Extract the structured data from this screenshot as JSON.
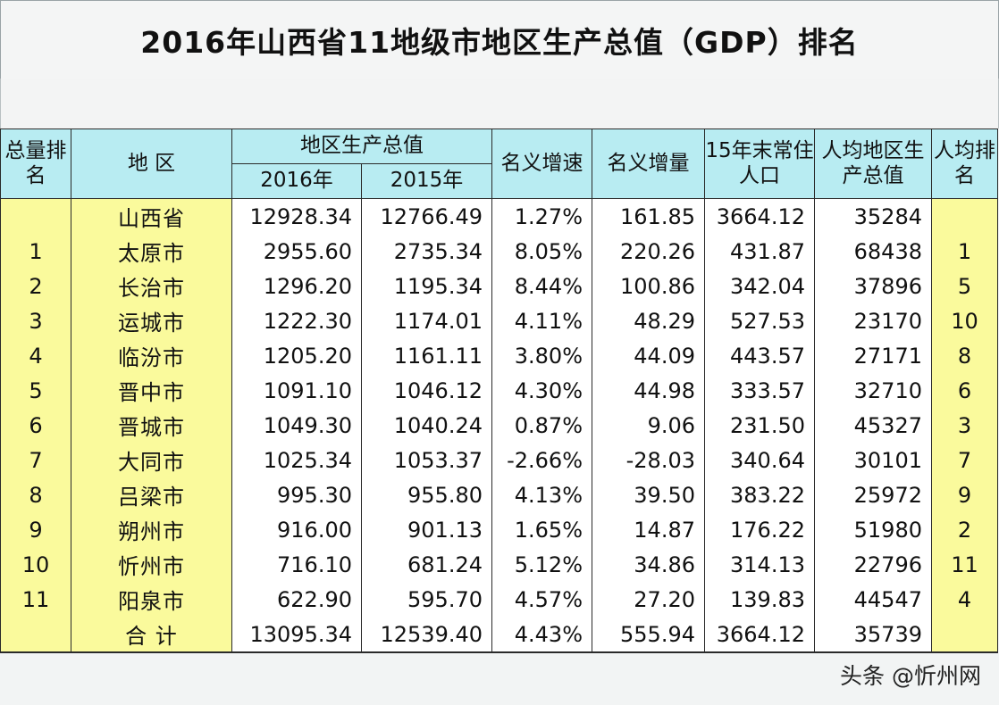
{
  "title": "2016年山西省11地级市地区生产总值（GDP）排名",
  "headers": {
    "rank_total": "总量排名",
    "region": "地 区",
    "gdp": "地区生产总值",
    "y2016": "2016年",
    "y2015": "2015年",
    "growth": "名义增速",
    "increment": "名义增量",
    "population": "15年末常住人口",
    "per_capita": "人均地区生产总值",
    "per_capita_rank": "人均排名"
  },
  "rows": [
    {
      "rank": "",
      "region": "山西省",
      "gdp2016": "12928.34",
      "gdp2015": "12766.49",
      "growth": "1.27%",
      "increment": "161.85",
      "population": "3664.12",
      "per_capita": "35284",
      "pc_rank": ""
    },
    {
      "rank": "1",
      "region": "太原市",
      "gdp2016": "2955.60",
      "gdp2015": "2735.34",
      "growth": "8.05%",
      "increment": "220.26",
      "population": "431.87",
      "per_capita": "68438",
      "pc_rank": "1"
    },
    {
      "rank": "2",
      "region": "长治市",
      "gdp2016": "1296.20",
      "gdp2015": "1195.34",
      "growth": "8.44%",
      "increment": "100.86",
      "population": "342.04",
      "per_capita": "37896",
      "pc_rank": "5"
    },
    {
      "rank": "3",
      "region": "运城市",
      "gdp2016": "1222.30",
      "gdp2015": "1174.01",
      "growth": "4.11%",
      "increment": "48.29",
      "population": "527.53",
      "per_capita": "23170",
      "pc_rank": "10"
    },
    {
      "rank": "4",
      "region": "临汾市",
      "gdp2016": "1205.20",
      "gdp2015": "1161.11",
      "growth": "3.80%",
      "increment": "44.09",
      "population": "443.57",
      "per_capita": "27171",
      "pc_rank": "8"
    },
    {
      "rank": "5",
      "region": "晋中市",
      "gdp2016": "1091.10",
      "gdp2015": "1046.12",
      "growth": "4.30%",
      "increment": "44.98",
      "population": "333.57",
      "per_capita": "32710",
      "pc_rank": "6"
    },
    {
      "rank": "6",
      "region": "晋城市",
      "gdp2016": "1049.30",
      "gdp2015": "1040.24",
      "growth": "0.87%",
      "increment": "9.06",
      "population": "231.50",
      "per_capita": "45327",
      "pc_rank": "3"
    },
    {
      "rank": "7",
      "region": "大同市",
      "gdp2016": "1025.34",
      "gdp2015": "1053.37",
      "growth": "-2.66%",
      "increment": "-28.03",
      "population": "340.64",
      "per_capita": "30101",
      "pc_rank": "7"
    },
    {
      "rank": "8",
      "region": "吕梁市",
      "gdp2016": "995.30",
      "gdp2015": "955.80",
      "growth": "4.13%",
      "increment": "39.50",
      "population": "383.22",
      "per_capita": "25972",
      "pc_rank": "9"
    },
    {
      "rank": "9",
      "region": "朔州市",
      "gdp2016": "916.00",
      "gdp2015": "901.13",
      "growth": "1.65%",
      "increment": "14.87",
      "population": "176.22",
      "per_capita": "51980",
      "pc_rank": "2"
    },
    {
      "rank": "10",
      "region": "忻州市",
      "gdp2016": "716.10",
      "gdp2015": "681.24",
      "growth": "5.12%",
      "increment": "34.86",
      "population": "314.13",
      "per_capita": "22796",
      "pc_rank": "11"
    },
    {
      "rank": "11",
      "region": "阳泉市",
      "gdp2016": "622.90",
      "gdp2015": "595.70",
      "growth": "4.57%",
      "increment": "27.20",
      "population": "139.83",
      "per_capita": "44547",
      "pc_rank": "4"
    },
    {
      "rank": "",
      "region": "合  计",
      "gdp2016": "13095.34",
      "gdp2015": "12539.40",
      "growth": "4.43%",
      "increment": "555.94",
      "population": "3664.12",
      "per_capita": "35739",
      "pc_rank": ""
    }
  ],
  "watermark": "头条 @忻州网"
}
